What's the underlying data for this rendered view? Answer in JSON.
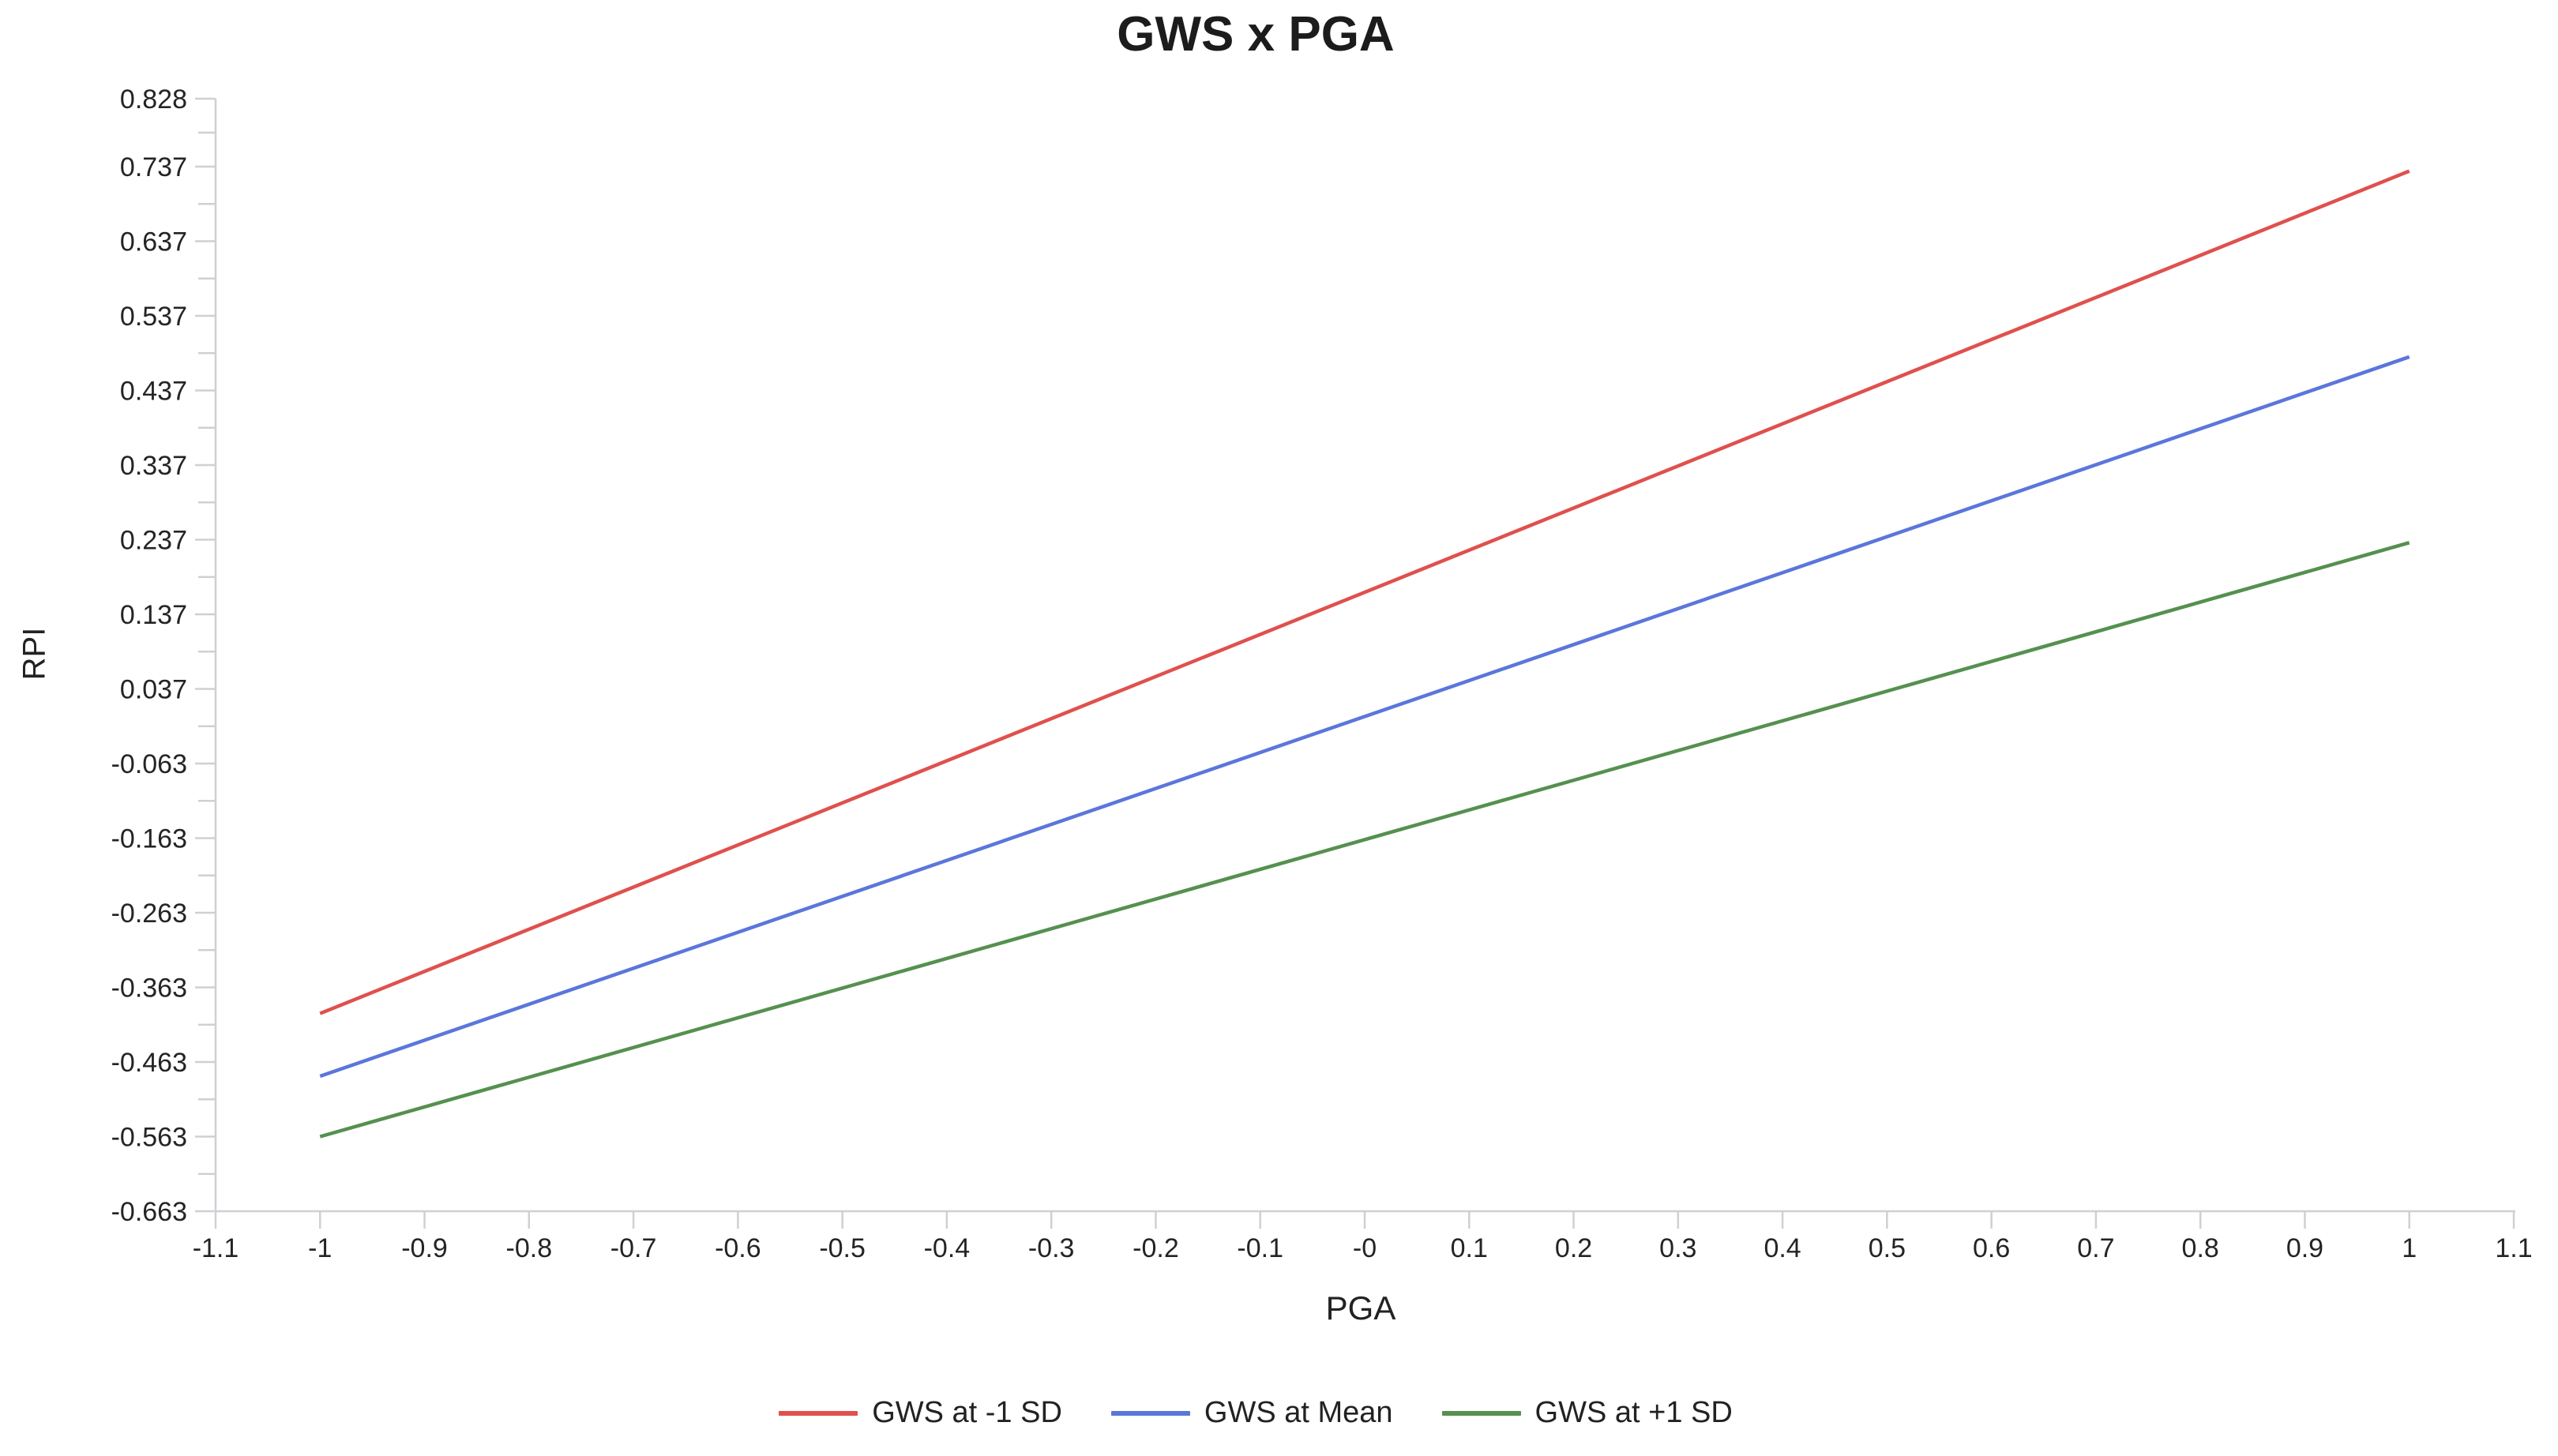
{
  "title": "GWS x PGA",
  "colors": {
    "axis": "#cfd0d4",
    "tick_text": "#242424",
    "title_text": "#1c1c1c",
    "background": "#ffffff"
  },
  "chart_data": {
    "type": "line",
    "title": "GWS x PGA",
    "xlabel": "PGA",
    "ylabel": "RPI",
    "x_range": [
      -1.1,
      1.1
    ],
    "y_range": [
      -0.663,
      0.828
    ],
    "grid": "off",
    "legend_position": "bottom",
    "x_tick_values": [
      -1.1,
      -1,
      -0.9,
      -0.8,
      -0.7,
      -0.6,
      -0.5,
      -0.4,
      -0.3,
      -0.2,
      -0.1,
      0,
      0.1,
      0.2,
      0.3,
      0.4,
      0.5,
      0.6,
      0.7,
      0.8,
      0.9,
      1,
      1.1
    ],
    "x_tick_labels": [
      "-1.1",
      "-1",
      "-0.9",
      "-0.8",
      "-0.7",
      "-0.6",
      "-0.5",
      "-0.4",
      "-0.3",
      "-0.2",
      "-0.1",
      "-0",
      "0.1",
      "0.2",
      "0.3",
      "0.4",
      "0.5",
      "0.6",
      "0.7",
      "0.8",
      "0.9",
      "1",
      "1.1"
    ],
    "y_tick_values": [
      0.828,
      0.737,
      0.637,
      0.537,
      0.437,
      0.337,
      0.237,
      0.137,
      0.037,
      -0.063,
      -0.163,
      -0.263,
      -0.363,
      -0.463,
      -0.563,
      -0.663
    ],
    "y_tick_labels": [
      "0.828",
      "0.737",
      "0.637",
      "0.537",
      "0.437",
      "0.337",
      "0.237",
      "0.137",
      "0.037",
      "-0.063",
      "-0.163",
      "-0.263",
      "-0.363",
      "-0.463",
      "-0.563",
      "-0.663"
    ],
    "series": [
      {
        "name": "GWS at -1 SD",
        "color": "#e0504d",
        "x": [
          -1,
          1
        ],
        "y": [
          -0.398,
          0.731
        ]
      },
      {
        "name": "GWS at Mean",
        "color": "#5b76db",
        "x": [
          -1,
          1
        ],
        "y": [
          -0.482,
          0.482
        ]
      },
      {
        "name": "GWS at +1 SD",
        "color": "#55904f",
        "x": [
          -1,
          1
        ],
        "y": [
          -0.563,
          0.233
        ]
      }
    ]
  }
}
